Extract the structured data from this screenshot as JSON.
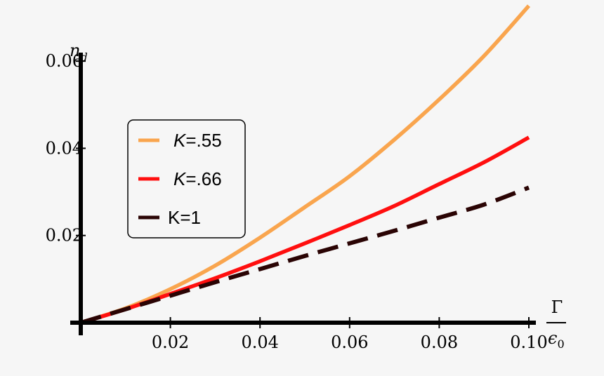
{
  "chart_data": {
    "type": "line",
    "ylabel": "n",
    "ylabel_sub": "d",
    "xlabel_num": "Γ",
    "xlabel_den": "ϵ",
    "xlabel_den_sub": "0",
    "xlim": [
      0,
      0.1
    ],
    "ylim": [
      0,
      0.07
    ],
    "x_ticks": [
      0.02,
      0.04,
      0.06,
      0.08,
      0.1
    ],
    "x_tick_labels": [
      "0.02",
      "0.04",
      "0.06",
      "0.08",
      "0.10"
    ],
    "y_ticks": [
      0.02,
      0.04,
      0.06
    ],
    "y_tick_labels": [
      "0.02",
      "0.04",
      "0.06"
    ],
    "grid": false,
    "legend_position": "upper-left",
    "x": [
      0,
      0.01,
      0.02,
      0.03,
      0.04,
      0.05,
      0.06,
      0.07,
      0.08,
      0.09,
      0.1
    ],
    "series": [
      {
        "name": "K=.55",
        "italic_k": true,
        "color": "#f9a54e",
        "dashed": false,
        "values": [
          0,
          0.0033,
          0.0077,
          0.0131,
          0.0195,
          0.0265,
          0.0336,
          0.042,
          0.0512,
          0.0612,
          0.0727
        ]
      },
      {
        "name": "K=.66",
        "italic_k": true,
        "color": "#ff0f0f",
        "dashed": false,
        "values": [
          0,
          0.0031,
          0.0066,
          0.0102,
          0.0141,
          0.0182,
          0.0224,
          0.0268,
          0.0318,
          0.0368,
          0.0425
        ]
      },
      {
        "name": "K=1",
        "italic_k": false,
        "color": "#2a0404",
        "dashed": true,
        "values": [
          0,
          0.0031,
          0.0062,
          0.0093,
          0.0123,
          0.0153,
          0.0182,
          0.0211,
          0.0241,
          0.0271,
          0.031
        ]
      }
    ]
  }
}
